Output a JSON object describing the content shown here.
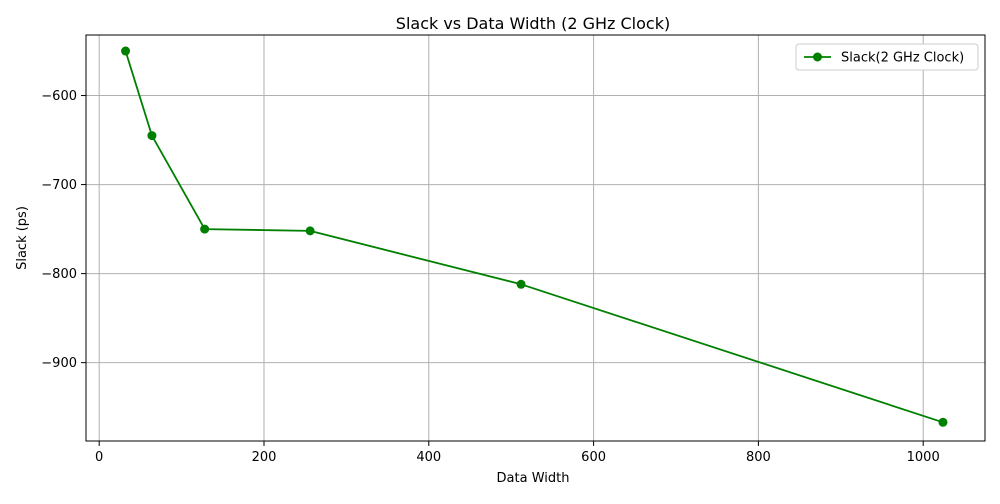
{
  "chart_data": {
    "type": "line",
    "title": "Slack vs Data Width (2 GHz Clock)",
    "xlabel": "Data Width",
    "ylabel": "Slack (ps)",
    "xlim": [
      -16,
      1075
    ],
    "ylim": [
      -988,
      -532
    ],
    "xticks": [
      0,
      200,
      400,
      600,
      800,
      1000
    ],
    "yticks": [
      -600,
      -700,
      -800,
      -900
    ],
    "xtick_labels": [
      "0",
      "200",
      "400",
      "600",
      "800",
      "1000"
    ],
    "ytick_labels": [
      "−600",
      "−700",
      "−800",
      "−900"
    ],
    "grid": true,
    "legend_position": "top-right",
    "series": [
      {
        "name": "Slack(2 GHz Clock)",
        "color": "#008000",
        "marker": "circle",
        "x": [
          32,
          64,
          128,
          256,
          512,
          1024
        ],
        "y": [
          -550,
          -645,
          -750,
          -752,
          -812,
          -967
        ]
      }
    ]
  }
}
